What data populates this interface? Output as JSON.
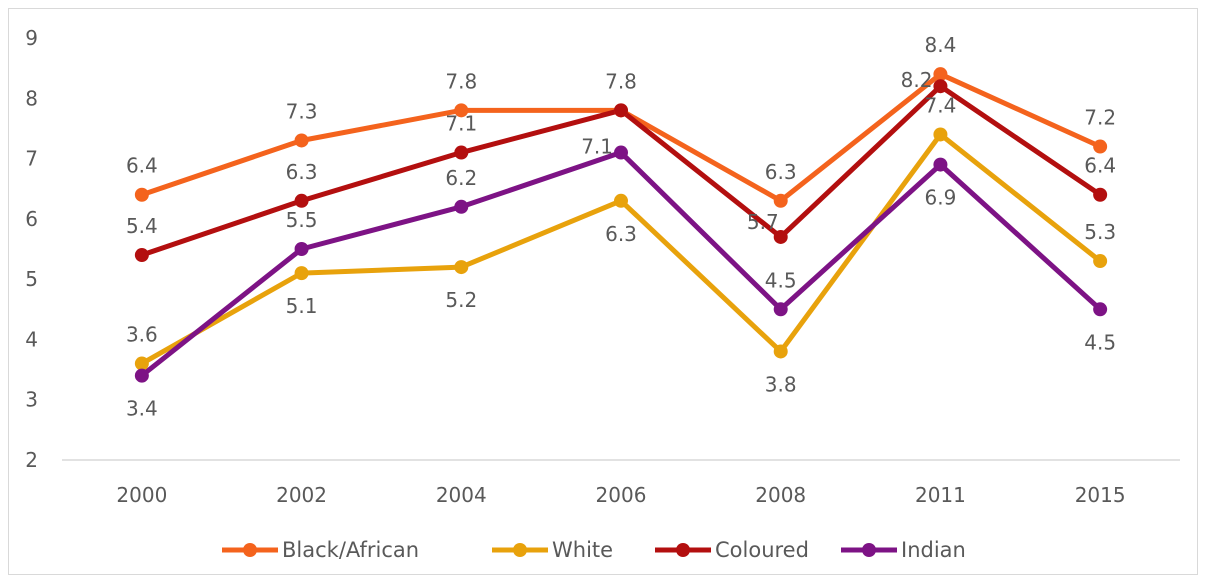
{
  "chart_data": {
    "type": "line",
    "categories": [
      "2000",
      "2002",
      "2004",
      "2006",
      "2008",
      "2011",
      "2015"
    ],
    "ylim": [
      2,
      9
    ],
    "yticks": [
      2,
      3,
      4,
      5,
      6,
      7,
      8,
      9
    ],
    "grid": false,
    "legend_position": "bottom",
    "series": [
      {
        "name": "Black/African",
        "color": "#f4631d",
        "values": [
          6.4,
          7.3,
          7.8,
          7.8,
          6.3,
          8.4,
          7.2
        ],
        "label_side": [
          "above",
          "above",
          "above",
          "above",
          "above",
          "above",
          "above"
        ]
      },
      {
        "name": "White",
        "color": "#e8a20c",
        "values": [
          3.6,
          5.1,
          5.2,
          6.3,
          3.8,
          7.4,
          5.3
        ],
        "label_side": [
          "above",
          "below",
          "below",
          "below",
          "below",
          "above",
          "above"
        ]
      },
      {
        "name": "Coloured",
        "color": "#b30f0f",
        "values": [
          5.4,
          6.3,
          7.1,
          7.8,
          5.7,
          8.2,
          6.4
        ],
        "label_side": [
          "above",
          "above",
          "above",
          "none",
          "above-left",
          "left",
          "above"
        ]
      },
      {
        "name": "Indian",
        "color": "#7d1385",
        "values": [
          3.4,
          5.5,
          6.2,
          7.1,
          4.5,
          6.9,
          4.5
        ],
        "label_side": [
          "below",
          "above",
          "above",
          "left",
          "above",
          "below",
          "below"
        ]
      }
    ]
  }
}
